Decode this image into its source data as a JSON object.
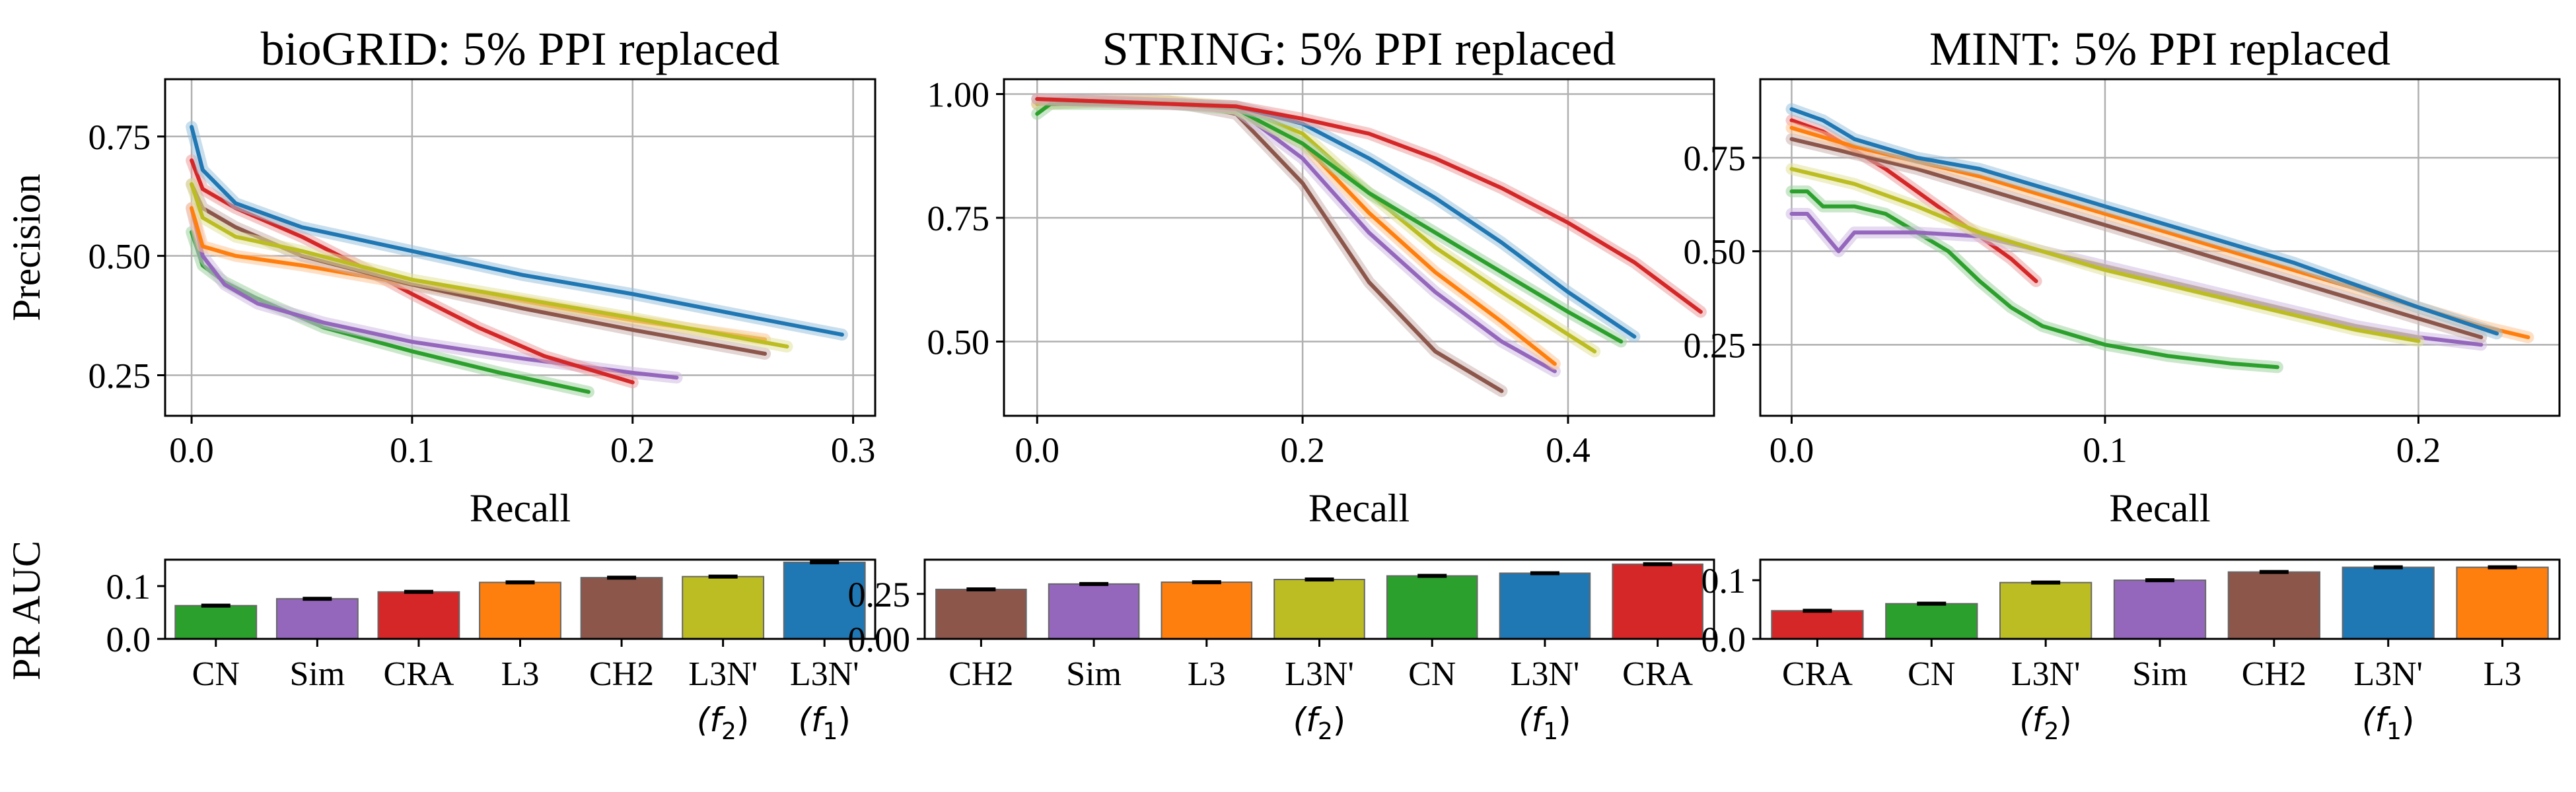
{
  "chart_data": [
    {
      "type": "line",
      "title": "bioGRID: 5% PPI replaced",
      "xlabel": "Recall",
      "ylabel": "Precision",
      "xlim": [
        -0.012,
        0.31
      ],
      "ylim": [
        0.165,
        0.87
      ],
      "xticks": [
        0.0,
        0.1,
        0.2,
        0.3
      ],
      "xtick_labels": [
        "0.0",
        "0.1",
        "0.2",
        "0.3"
      ],
      "yticks": [
        0.25,
        0.5,
        0.75
      ],
      "ytick_labels": [
        "0.25",
        "0.50",
        "0.75"
      ],
      "grid": true,
      "series": [
        {
          "color": "#2ca02c",
          "x": [
            0.0,
            0.005,
            0.015,
            0.03,
            0.06,
            0.1,
            0.14,
            0.18
          ],
          "y": [
            0.55,
            0.48,
            0.445,
            0.41,
            0.35,
            0.3,
            0.255,
            0.215
          ]
        },
        {
          "color": "#9467bd",
          "x": [
            0.0,
            0.005,
            0.015,
            0.03,
            0.06,
            0.1,
            0.15,
            0.2,
            0.22
          ],
          "y": [
            0.6,
            0.5,
            0.44,
            0.4,
            0.36,
            0.32,
            0.285,
            0.255,
            0.245
          ]
        },
        {
          "color": "#d62728",
          "x": [
            0.0,
            0.005,
            0.02,
            0.05,
            0.08,
            0.1,
            0.13,
            0.16,
            0.2
          ],
          "y": [
            0.7,
            0.64,
            0.6,
            0.54,
            0.47,
            0.42,
            0.35,
            0.29,
            0.235
          ]
        },
        {
          "color": "#ff7f0e",
          "x": [
            0.0,
            0.005,
            0.02,
            0.05,
            0.1,
            0.15,
            0.2,
            0.26
          ],
          "y": [
            0.6,
            0.52,
            0.5,
            0.48,
            0.44,
            0.405,
            0.365,
            0.325
          ]
        },
        {
          "color": "#8c564b",
          "x": [
            0.0,
            0.005,
            0.02,
            0.05,
            0.1,
            0.15,
            0.2,
            0.26
          ],
          "y": [
            0.65,
            0.6,
            0.56,
            0.5,
            0.44,
            0.39,
            0.345,
            0.295
          ]
        },
        {
          "color": "#bcbd22",
          "x": [
            0.0,
            0.005,
            0.02,
            0.05,
            0.1,
            0.15,
            0.2,
            0.27
          ],
          "y": [
            0.65,
            0.58,
            0.54,
            0.51,
            0.45,
            0.41,
            0.37,
            0.31
          ]
        },
        {
          "color": "#1f77b4",
          "x": [
            0.0,
            0.005,
            0.02,
            0.05,
            0.1,
            0.15,
            0.2,
            0.25,
            0.295
          ],
          "y": [
            0.77,
            0.68,
            0.61,
            0.56,
            0.51,
            0.46,
            0.42,
            0.375,
            0.335
          ]
        }
      ]
    },
    {
      "type": "line",
      "title": "STRING: 5% PPI replaced",
      "xlabel": "Recall",
      "ylabel": "",
      "xlim": [
        -0.025,
        0.51
      ],
      "ylim": [
        0.35,
        1.03
      ],
      "xticks": [
        0.0,
        0.2,
        0.4
      ],
      "xtick_labels": [
        "0.0",
        "0.2",
        "0.4"
      ],
      "yticks": [
        0.5,
        0.75,
        1.0
      ],
      "ytick_labels": [
        "0.50",
        "0.75",
        "1.00"
      ],
      "grid": true,
      "series": [
        {
          "color": "#8c564b",
          "x": [
            0.0,
            0.05,
            0.1,
            0.15,
            0.2,
            0.25,
            0.3,
            0.35
          ],
          "y": [
            0.98,
            0.99,
            0.985,
            0.96,
            0.82,
            0.62,
            0.48,
            0.4
          ]
        },
        {
          "color": "#9467bd",
          "x": [
            0.0,
            0.05,
            0.1,
            0.15,
            0.2,
            0.25,
            0.3,
            0.35,
            0.39
          ],
          "y": [
            0.98,
            0.985,
            0.985,
            0.97,
            0.87,
            0.72,
            0.6,
            0.5,
            0.44
          ]
        },
        {
          "color": "#ff7f0e",
          "x": [
            0.0,
            0.05,
            0.1,
            0.15,
            0.2,
            0.25,
            0.3,
            0.35,
            0.39
          ],
          "y": [
            0.98,
            0.985,
            0.985,
            0.97,
            0.9,
            0.76,
            0.64,
            0.54,
            0.455
          ]
        },
        {
          "color": "#bcbd22",
          "x": [
            0.0,
            0.05,
            0.1,
            0.15,
            0.2,
            0.25,
            0.3,
            0.35,
            0.42
          ],
          "y": [
            0.98,
            0.985,
            0.985,
            0.975,
            0.92,
            0.8,
            0.69,
            0.6,
            0.48
          ]
        },
        {
          "color": "#2ca02c",
          "x": [
            0.0,
            0.01,
            0.05,
            0.1,
            0.15,
            0.2,
            0.25,
            0.3,
            0.35,
            0.4,
            0.44
          ],
          "y": [
            0.96,
            0.98,
            0.98,
            0.98,
            0.97,
            0.9,
            0.8,
            0.72,
            0.64,
            0.56,
            0.5
          ]
        },
        {
          "color": "#1f77b4",
          "x": [
            0.0,
            0.05,
            0.1,
            0.15,
            0.2,
            0.25,
            0.3,
            0.35,
            0.4,
            0.45
          ],
          "y": [
            0.99,
            0.985,
            0.98,
            0.975,
            0.94,
            0.87,
            0.79,
            0.7,
            0.6,
            0.51
          ]
        },
        {
          "color": "#d62728",
          "x": [
            0.0,
            0.05,
            0.1,
            0.15,
            0.2,
            0.25,
            0.3,
            0.35,
            0.4,
            0.45,
            0.5
          ],
          "y": [
            0.99,
            0.985,
            0.98,
            0.975,
            0.95,
            0.92,
            0.87,
            0.81,
            0.74,
            0.66,
            0.56
          ]
        }
      ]
    },
    {
      "type": "line",
      "title": "MINT: 5% PPI replaced",
      "xlabel": "Recall",
      "ylabel": "",
      "xlim": [
        -0.01,
        0.245
      ],
      "ylim": [
        0.06,
        0.96
      ],
      "xticks": [
        0.0,
        0.1,
        0.2
      ],
      "xtick_labels": [
        "0.0",
        "0.1",
        "0.2"
      ],
      "yticks": [
        0.25,
        0.5,
        0.75
      ],
      "ytick_labels": [
        "0.25",
        "0.50",
        "0.75"
      ],
      "grid": true,
      "series": [
        {
          "color": "#2ca02c",
          "x": [
            0.0,
            0.005,
            0.01,
            0.02,
            0.03,
            0.04,
            0.05,
            0.06,
            0.07,
            0.08,
            0.1,
            0.12,
            0.14,
            0.155
          ],
          "y": [
            0.66,
            0.66,
            0.62,
            0.62,
            0.6,
            0.55,
            0.5,
            0.42,
            0.35,
            0.3,
            0.25,
            0.22,
            0.2,
            0.19
          ]
        },
        {
          "color": "#d62728",
          "x": [
            0.0,
            0.01,
            0.02,
            0.03,
            0.04,
            0.05,
            0.06,
            0.07,
            0.078
          ],
          "y": [
            0.85,
            0.82,
            0.77,
            0.72,
            0.66,
            0.6,
            0.54,
            0.48,
            0.42
          ]
        },
        {
          "color": "#9467bd",
          "x": [
            0.0,
            0.005,
            0.01,
            0.015,
            0.02,
            0.04,
            0.06,
            0.08,
            0.1,
            0.12,
            0.14,
            0.16,
            0.18,
            0.2,
            0.22
          ],
          "y": [
            0.6,
            0.6,
            0.55,
            0.5,
            0.55,
            0.55,
            0.54,
            0.5,
            0.46,
            0.42,
            0.38,
            0.34,
            0.3,
            0.27,
            0.25
          ]
        },
        {
          "color": "#bcbd22",
          "x": [
            0.0,
            0.02,
            0.04,
            0.06,
            0.08,
            0.1,
            0.12,
            0.14,
            0.16,
            0.18,
            0.2
          ],
          "y": [
            0.72,
            0.68,
            0.62,
            0.55,
            0.5,
            0.45,
            0.41,
            0.37,
            0.33,
            0.29,
            0.26
          ]
        },
        {
          "color": "#8c564b",
          "x": [
            0.0,
            0.02,
            0.04,
            0.06,
            0.08,
            0.1,
            0.12,
            0.14,
            0.16,
            0.18,
            0.2,
            0.22
          ],
          "y": [
            0.8,
            0.76,
            0.72,
            0.67,
            0.62,
            0.57,
            0.52,
            0.47,
            0.42,
            0.37,
            0.32,
            0.27
          ]
        },
        {
          "color": "#ff7f0e",
          "x": [
            0.0,
            0.02,
            0.04,
            0.06,
            0.08,
            0.1,
            0.12,
            0.14,
            0.16,
            0.18,
            0.2,
            0.22,
            0.235
          ],
          "y": [
            0.83,
            0.78,
            0.74,
            0.7,
            0.65,
            0.6,
            0.55,
            0.5,
            0.45,
            0.4,
            0.35,
            0.3,
            0.27
          ]
        },
        {
          "color": "#1f77b4",
          "x": [
            0.0,
            0.01,
            0.02,
            0.04,
            0.06,
            0.08,
            0.1,
            0.12,
            0.14,
            0.16,
            0.18,
            0.2,
            0.225
          ],
          "y": [
            0.88,
            0.85,
            0.8,
            0.75,
            0.72,
            0.67,
            0.62,
            0.57,
            0.52,
            0.47,
            0.41,
            0.35,
            0.28
          ]
        }
      ]
    },
    {
      "type": "bar",
      "title": "",
      "xlabel": "",
      "ylabel": "PR AUC",
      "ylim": [
        0,
        0.15
      ],
      "yticks": [
        0.0,
        0.1
      ],
      "ytick_labels": [
        "0.0",
        "0.1"
      ],
      "categories": [
        "CN",
        "Sim",
        "CRA",
        "L3",
        "CH2",
        "L3N'",
        "L3N'"
      ],
      "category_sublabels": [
        "",
        "",
        "",
        "",
        "",
        "(f2)",
        "(f1)"
      ],
      "values": [
        0.063,
        0.076,
        0.089,
        0.107,
        0.116,
        0.118,
        0.145
      ],
      "colors": [
        "#2ca02c",
        "#9467bd",
        "#d62728",
        "#ff7f0e",
        "#8c564b",
        "#bcbd22",
        "#1f77b4"
      ]
    },
    {
      "type": "bar",
      "title": "",
      "xlabel": "",
      "ylabel": "",
      "ylim": [
        0,
        0.44
      ],
      "yticks": [
        0.0,
        0.25
      ],
      "ytick_labels": [
        "0.00",
        "0.25"
      ],
      "categories": [
        "CH2",
        "Sim",
        "L3",
        "L3N'",
        "CN",
        "L3N'",
        "CRA"
      ],
      "category_sublabels": [
        "",
        "",
        "",
        "(f2)",
        "",
        "(f1)",
        ""
      ],
      "values": [
        0.275,
        0.305,
        0.315,
        0.33,
        0.35,
        0.365,
        0.415
      ],
      "colors": [
        "#8c564b",
        "#9467bd",
        "#ff7f0e",
        "#bcbd22",
        "#2ca02c",
        "#1f77b4",
        "#d62728"
      ]
    },
    {
      "type": "bar",
      "title": "",
      "xlabel": "",
      "ylabel": "",
      "ylim": [
        0,
        0.135
      ],
      "yticks": [
        0.0,
        0.1
      ],
      "ytick_labels": [
        "0.0",
        "0.1"
      ],
      "categories": [
        "CRA",
        "CN",
        "L3N'",
        "Sim",
        "CH2",
        "L3N'",
        "L3"
      ],
      "category_sublabels": [
        "",
        "",
        "(f2)",
        "",
        "",
        "(f1)",
        ""
      ],
      "values": [
        0.048,
        0.06,
        0.096,
        0.1,
        0.114,
        0.122,
        0.122
      ],
      "colors": [
        "#d62728",
        "#2ca02c",
        "#bcbd22",
        "#9467bd",
        "#8c564b",
        "#1f77b4",
        "#ff7f0e"
      ]
    }
  ]
}
